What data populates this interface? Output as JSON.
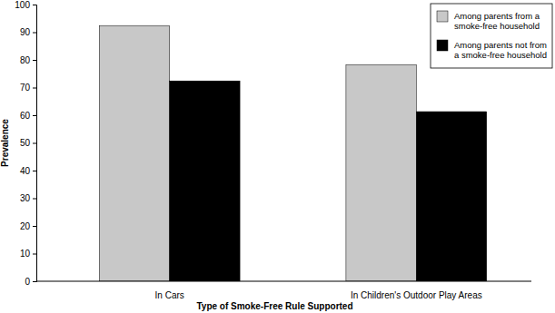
{
  "chart_data": {
    "type": "bar",
    "x_label": "Type of Smoke-Free Rule Supported",
    "y_label": "Prevalence",
    "categories": [
      "In Cars",
      "In Children's Outdoor Play Areas"
    ],
    "series": [
      {
        "name": "Among parents from a smoke-free household",
        "color": "#c8c8c8",
        "values": [
          92.4,
          78.3
        ]
      },
      {
        "name": "Among parents not from a smoke-free household",
        "color": "#000000",
        "values": [
          72.4,
          61.3
        ]
      }
    ],
    "ylim": [
      0,
      100
    ],
    "yticks": [
      0,
      10,
      20,
      30,
      40,
      50,
      60,
      70,
      80,
      90,
      100
    ],
    "grid": false,
    "legend": "upper right"
  }
}
